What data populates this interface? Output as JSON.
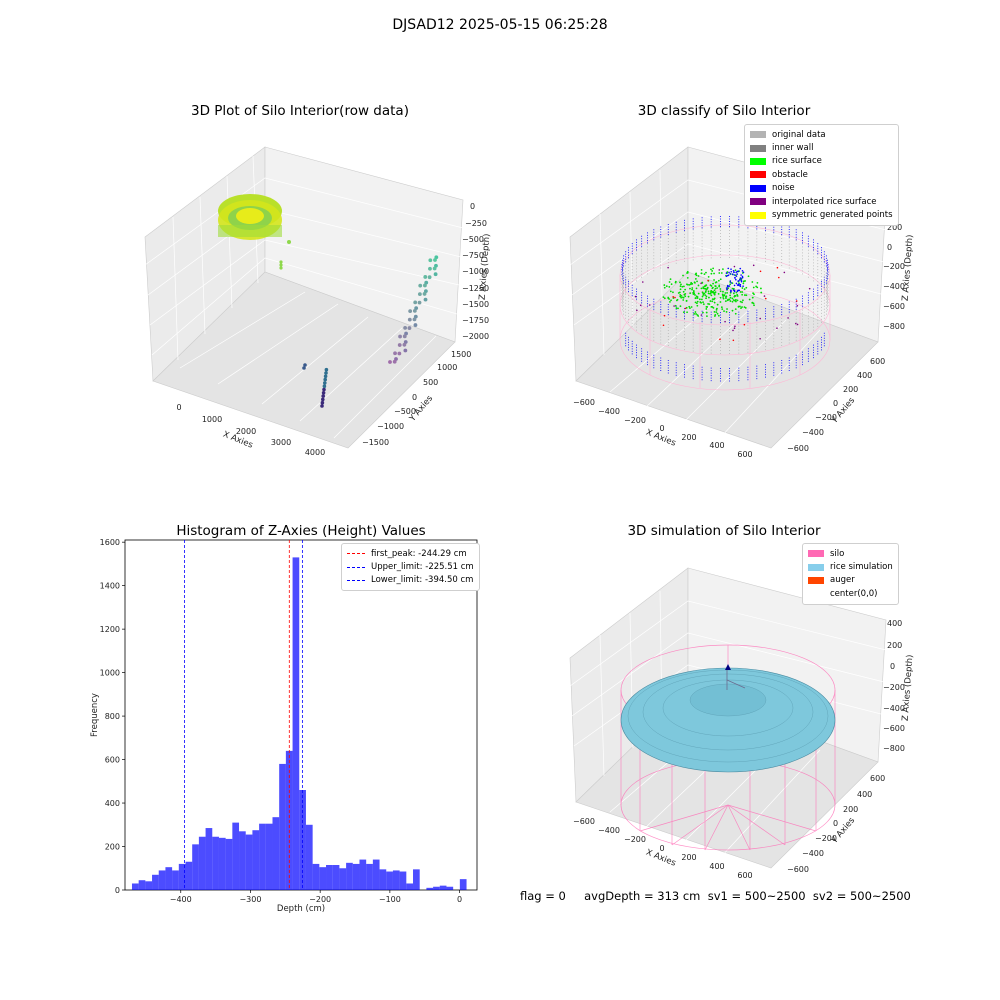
{
  "suptitle": "DJSAD12 2025-05-15 06:25:28",
  "panels": {
    "raw": {
      "title": "3D Plot of Silo Interior(row data)",
      "xlabel": "X Axies",
      "ylabel": "Y Axies",
      "zlabel": "Z Axies (Depth)",
      "xticks": [
        "0",
        "1000",
        "2000",
        "3000",
        "4000"
      ],
      "yticks": [
        "1500",
        "1000",
        "500",
        "0",
        "−500",
        "−1000",
        "−1500"
      ],
      "zticks": [
        "0",
        "−250",
        "−500",
        "−750",
        "−1000",
        "−1250",
        "−1500",
        "−1750",
        "−2000"
      ]
    },
    "classify": {
      "title": "3D classify of Silo Interior",
      "xlabel": "X Axies",
      "ylabel": "Y Axies",
      "zlabel": "Z Axies (Depth)",
      "xticks": [
        "−600",
        "−400",
        "−200",
        "0",
        "200",
        "400",
        "600"
      ],
      "yticks": [
        "600",
        "400",
        "200",
        "0",
        "−200",
        "−400",
        "−600"
      ],
      "zticks": [
        "200",
        "0",
        "−200",
        "−400",
        "−600",
        "−800"
      ],
      "legend": [
        {
          "label": "original data",
          "color": "#b3b3b3"
        },
        {
          "label": "inner wall",
          "color": "#808080"
        },
        {
          "label": "rice surface",
          "color": "#00ff00"
        },
        {
          "label": "obstacle",
          "color": "#ff0000"
        },
        {
          "label": "noise",
          "color": "#0000ff"
        },
        {
          "label": "interpolated rice surface",
          "color": "#800080"
        },
        {
          "label": "symmetric generated points",
          "color": "#ffff00"
        }
      ]
    },
    "histogram": {
      "title": "Histogram of Z-Axies (Height) Values",
      "legend": [
        {
          "label": "first_peak: -244.29 cm",
          "color": "#ff0000"
        },
        {
          "label": "Upper_limit: -225.51 cm",
          "color": "#0000ff"
        },
        {
          "label": "Lower_limit: -394.50 cm",
          "color": "#0000ff"
        }
      ]
    },
    "simulation": {
      "title": "3D simulation of Silo Interior",
      "xlabel": "X Axies",
      "ylabel": "Y Axies",
      "zlabel": "Z Axies (Depth)",
      "xticks": [
        "−600",
        "−400",
        "−200",
        "0",
        "200",
        "400",
        "600"
      ],
      "yticks": [
        "600",
        "400",
        "200",
        "0",
        "−200",
        "−400",
        "−600"
      ],
      "zticks": [
        "400",
        "200",
        "0",
        "−200",
        "−400",
        "−600",
        "−800"
      ],
      "legend": [
        {
          "label": "silo",
          "color": "#ff69b4"
        },
        {
          "label": "rice simulation",
          "color": "#87ceeb"
        },
        {
          "label": "auger",
          "color": "#ff4500"
        },
        {
          "label": "center(0,0)",
          "color": "#ffffff"
        }
      ]
    }
  },
  "footer": "flag = 0     avgDepth = 313 cm  sv1 = 500~2500  sv2 = 500~2500",
  "chart_data": {
    "type": "bar",
    "title": "Histogram of Z-Axies (Height) Values",
    "xlabel": "Depth (cm)",
    "ylabel": "Frequency",
    "xlim": [
      -480,
      25
    ],
    "ylim": [
      0,
      1610
    ],
    "xticks": [
      -400,
      -300,
      -200,
      -100,
      0
    ],
    "yticks": [
      0,
      200,
      400,
      600,
      800,
      1000,
      1200,
      1400,
      1600
    ],
    "bin_start": -470,
    "bin_width": 9.6,
    "values": [
      30,
      45,
      40,
      70,
      90,
      105,
      90,
      120,
      130,
      210,
      245,
      285,
      245,
      240,
      235,
      310,
      270,
      255,
      275,
      305,
      305,
      335,
      580,
      640,
      1530,
      460,
      300,
      120,
      105,
      115,
      115,
      100,
      125,
      120,
      140,
      120,
      140,
      95,
      85,
      90,
      85,
      30,
      95,
      0,
      10,
      15,
      20,
      15,
      0,
      50
    ],
    "vlines": [
      {
        "name": "first_peak",
        "x": -244.29,
        "color": "#ff0000"
      },
      {
        "name": "Upper_limit",
        "x": -225.51,
        "color": "#0000ff"
      },
      {
        "name": "Lower_limit",
        "x": -394.5,
        "color": "#0000ff"
      }
    ],
    "bar_color": "#0000ff"
  }
}
